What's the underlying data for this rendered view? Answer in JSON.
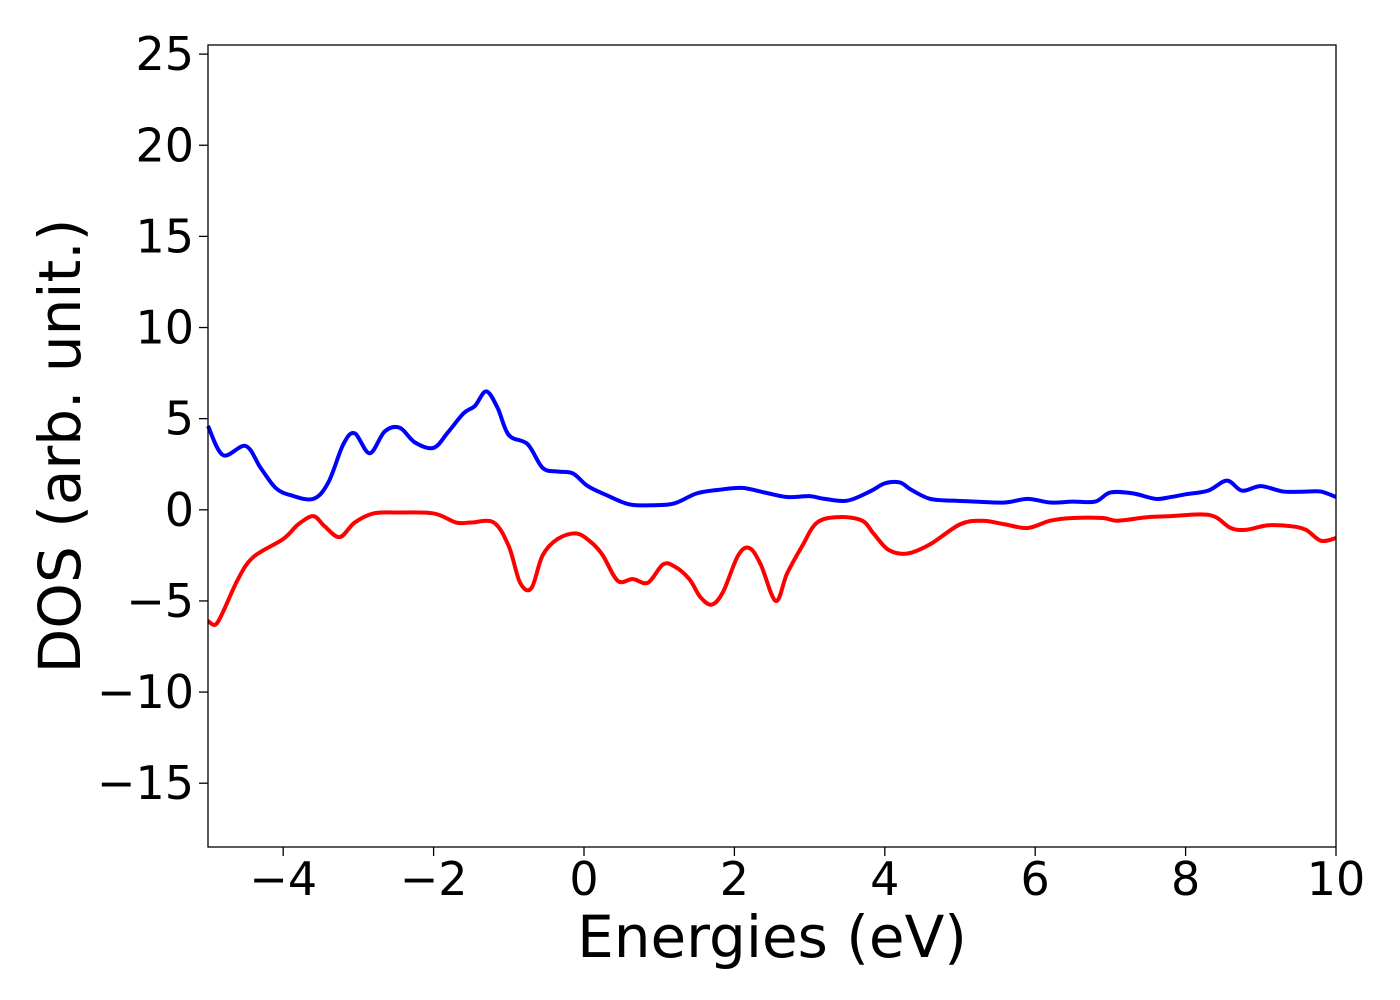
{
  "chart_data": {
    "type": "line",
    "title": "",
    "xlabel": "Energies (eV)",
    "ylabel": "DOS (arb. unit.)",
    "xlim": [
      -5,
      10
    ],
    "ylim": [
      -18.5,
      25.5
    ],
    "xticks": [
      -4,
      -2,
      0,
      2,
      4,
      6,
      8,
      10
    ],
    "xtick_labels": [
      "−4",
      "−2",
      "0",
      "2",
      "4",
      "6",
      "8",
      "10"
    ],
    "yticks": [
      -15,
      -10,
      -5,
      0,
      5,
      10,
      15,
      20,
      25
    ],
    "ytick_labels": [
      "−15",
      "−10",
      "−5",
      "0",
      "5",
      "10",
      "15",
      "20",
      "25"
    ],
    "grid": false,
    "legend": false,
    "series": [
      {
        "color": "#0000ff",
        "x": [
          -5.0,
          -4.8,
          -4.5,
          -4.3,
          -4.1,
          -3.9,
          -3.6,
          -3.4,
          -3.2,
          -3.05,
          -2.85,
          -2.65,
          -2.45,
          -2.25,
          -2.0,
          -1.8,
          -1.6,
          -1.45,
          -1.3,
          -1.15,
          -1.0,
          -0.75,
          -0.55,
          -0.35,
          -0.15,
          0.05,
          0.3,
          0.6,
          0.9,
          1.2,
          1.5,
          1.8,
          2.1,
          2.4,
          2.7,
          3.0,
          3.2,
          3.5,
          3.8,
          4.0,
          4.2,
          4.35,
          4.6,
          4.9,
          5.2,
          5.6,
          5.9,
          6.2,
          6.5,
          6.8,
          7.0,
          7.3,
          7.6,
          7.8,
          8.0,
          8.3,
          8.55,
          8.75,
          9.0,
          9.3,
          9.6,
          9.8,
          10.0
        ],
        "values": [
          4.6,
          3.0,
          3.5,
          2.3,
          1.2,
          0.8,
          0.6,
          1.5,
          3.6,
          4.2,
          3.1,
          4.3,
          4.5,
          3.7,
          3.4,
          4.3,
          5.3,
          5.7,
          6.5,
          5.6,
          4.1,
          3.6,
          2.3,
          2.1,
          2.0,
          1.3,
          0.8,
          0.3,
          0.25,
          0.35,
          0.9,
          1.1,
          1.2,
          0.95,
          0.7,
          0.75,
          0.6,
          0.5,
          1.0,
          1.45,
          1.5,
          1.1,
          0.6,
          0.5,
          0.45,
          0.4,
          0.6,
          0.4,
          0.45,
          0.45,
          0.95,
          0.9,
          0.6,
          0.7,
          0.85,
          1.05,
          1.6,
          1.05,
          1.3,
          1.0,
          1.0,
          1.0,
          0.7
        ]
      },
      {
        "color": "#ff0000",
        "x": [
          -5.0,
          -4.9,
          -4.8,
          -4.6,
          -4.4,
          -4.0,
          -3.8,
          -3.6,
          -3.45,
          -3.25,
          -3.05,
          -2.8,
          -2.5,
          -2.0,
          -1.7,
          -1.5,
          -1.2,
          -1.0,
          -0.85,
          -0.7,
          -0.55,
          -0.35,
          -0.1,
          0.1,
          0.25,
          0.45,
          0.65,
          0.85,
          1.05,
          1.2,
          1.4,
          1.55,
          1.7,
          1.85,
          2.05,
          2.2,
          2.35,
          2.55,
          2.7,
          2.9,
          3.1,
          3.4,
          3.7,
          3.85,
          4.05,
          4.3,
          4.6,
          5.0,
          5.3,
          5.6,
          5.9,
          6.2,
          6.5,
          6.9,
          7.1,
          7.5,
          7.8,
          8.2,
          8.4,
          8.6,
          8.8,
          9.1,
          9.4,
          9.6,
          9.8,
          10.0
        ],
        "values": [
          -6.1,
          -6.3,
          -5.6,
          -3.8,
          -2.6,
          -1.6,
          -0.8,
          -0.35,
          -0.9,
          -1.5,
          -0.7,
          -0.2,
          -0.15,
          -0.2,
          -0.7,
          -0.7,
          -0.7,
          -2.0,
          -4.0,
          -4.3,
          -2.5,
          -1.6,
          -1.3,
          -1.8,
          -2.5,
          -3.9,
          -3.8,
          -4.0,
          -3.0,
          -3.1,
          -3.8,
          -4.8,
          -5.2,
          -4.5,
          -2.5,
          -2.1,
          -3.0,
          -5.0,
          -3.5,
          -2.0,
          -0.7,
          -0.4,
          -0.6,
          -1.3,
          -2.2,
          -2.4,
          -1.9,
          -0.8,
          -0.6,
          -0.8,
          -1.0,
          -0.6,
          -0.45,
          -0.45,
          -0.6,
          -0.4,
          -0.35,
          -0.25,
          -0.4,
          -1.0,
          -1.1,
          -0.85,
          -0.9,
          -1.1,
          -1.7,
          -1.55
        ]
      }
    ]
  }
}
